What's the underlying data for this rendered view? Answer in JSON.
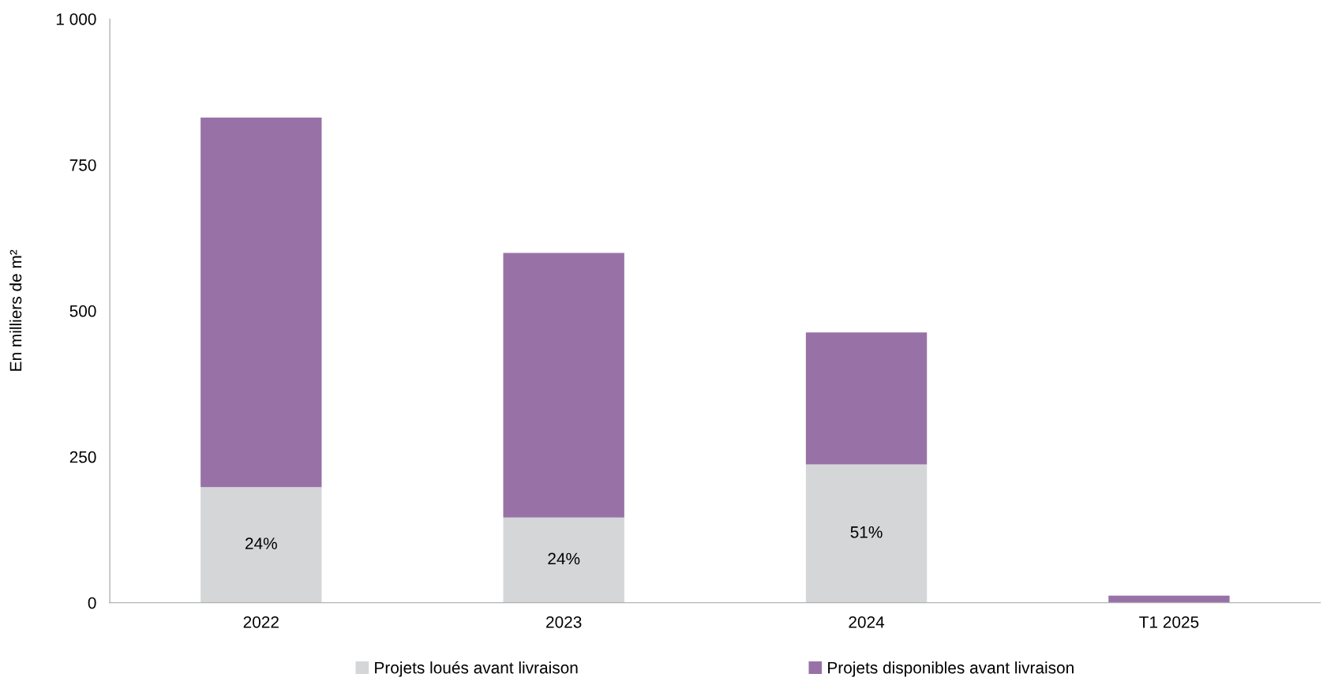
{
  "chart_data": {
    "type": "bar",
    "stacked": true,
    "ylabel": "En milliers de m²",
    "categories": [
      "2022",
      "2023",
      "2024",
      "T1 2025"
    ],
    "series": [
      {
        "name": "Projets loués avant livraison",
        "color": "#d5d6d8",
        "values": [
          198,
          146,
          237,
          0
        ]
      },
      {
        "name": "Projets disponibles avant livraison",
        "color": "#9872a6",
        "values": [
          633,
          453,
          226,
          12
        ]
      }
    ],
    "ylim": [
      0,
      1000
    ],
    "yticks": [
      0,
      250,
      500,
      750,
      {
        "value": 1000,
        "label": "1 000"
      }
    ],
    "annotations": [
      "24%",
      "24%",
      "51%"
    ],
    "grid": false,
    "legend": "bottom"
  }
}
